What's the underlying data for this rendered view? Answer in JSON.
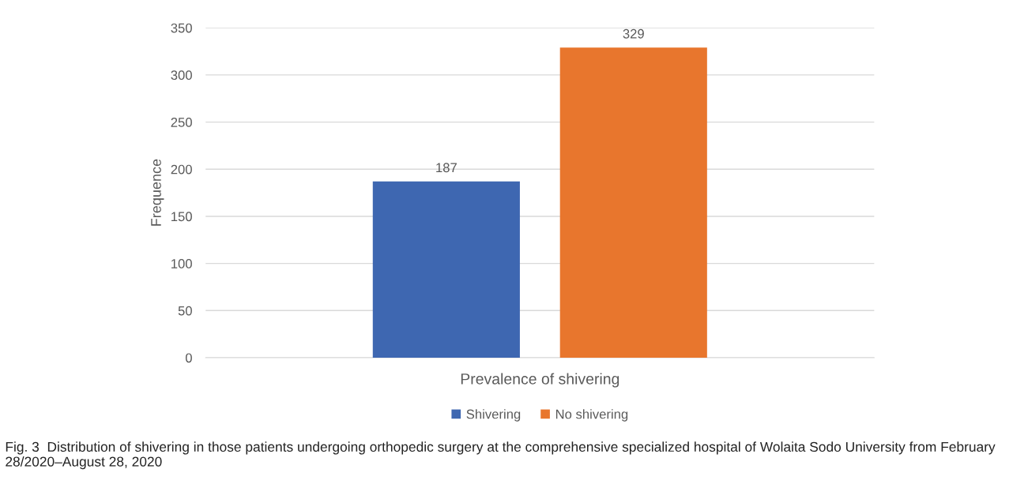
{
  "chart_data": {
    "type": "bar",
    "ylabel": "Frequence",
    "categories": [
      "Prevalence of shivering"
    ],
    "series": [
      {
        "name": "Shivering",
        "color": "#3e67b1",
        "values": [
          187
        ]
      },
      {
        "name": "No shivering",
        "color": "#e8762d",
        "values": [
          329
        ]
      }
    ],
    "ylim": [
      0,
      350
    ],
    "yticks": [
      0,
      50,
      100,
      150,
      200,
      250,
      300,
      350
    ],
    "grid": "y",
    "legend": "bottom",
    "data_labels": true,
    "annotations": [
      "Fig. 3  Distribution of shivering in those patients undergoing orthopedic surgery at the comprehensive specialized hospital of Wolaita Sodo University from February 28/2020–August 28, 2020"
    ]
  }
}
